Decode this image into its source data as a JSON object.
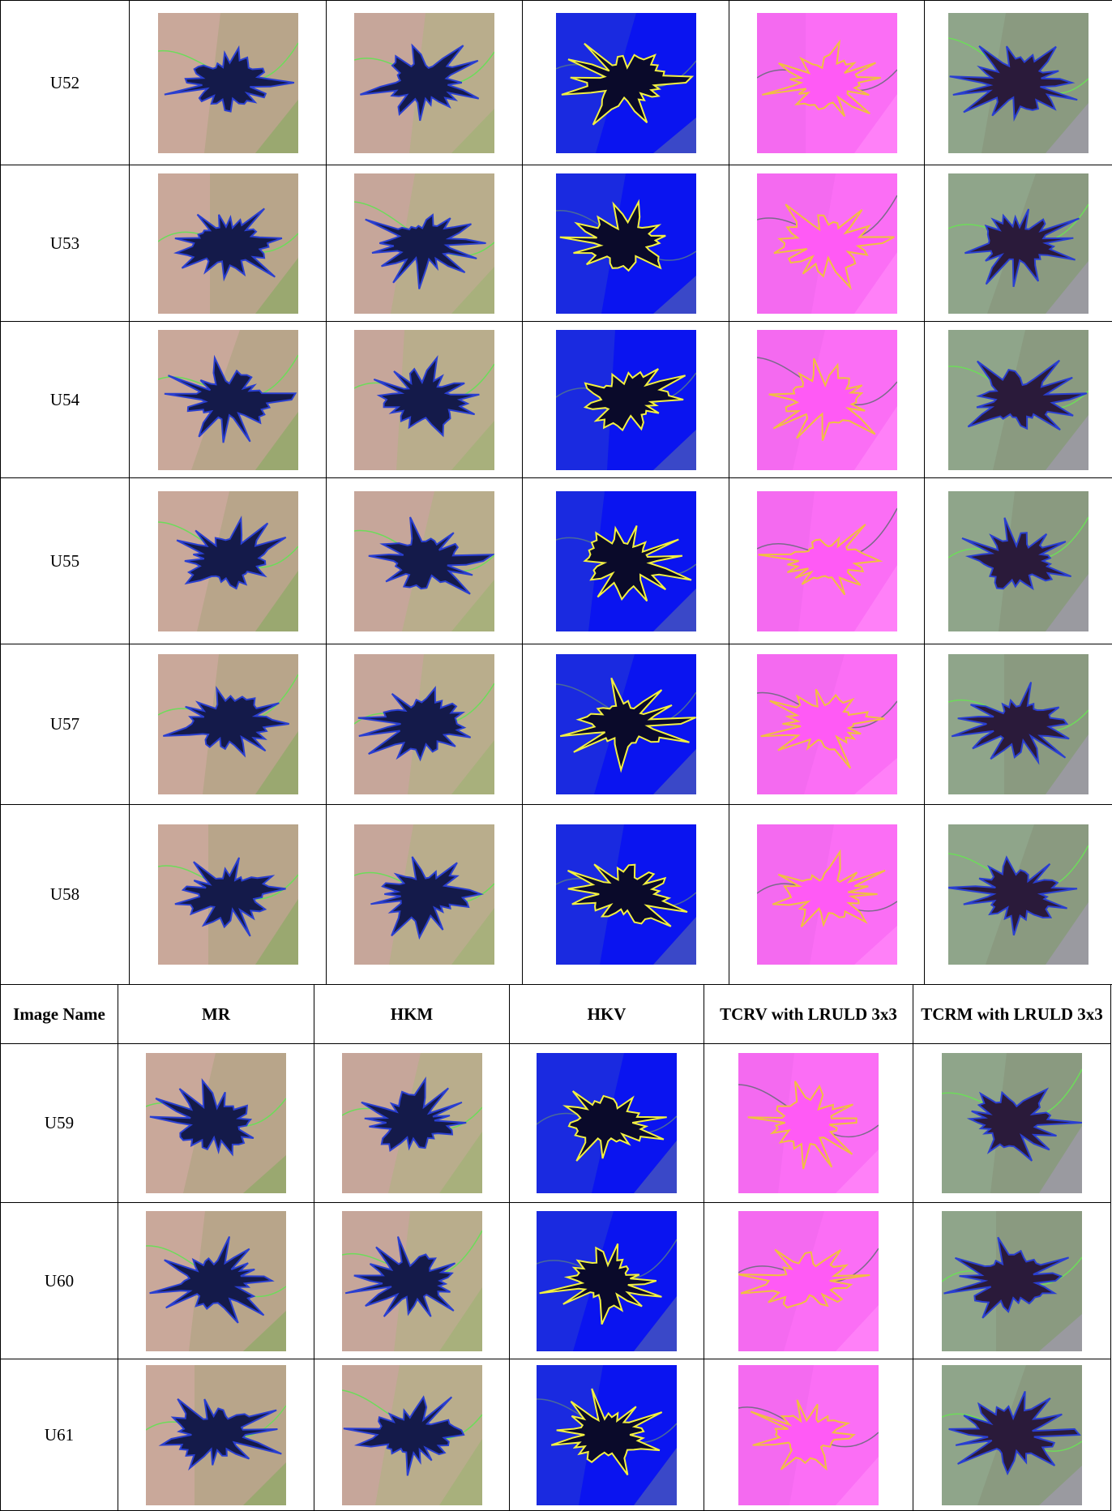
{
  "table_top": {
    "rows": [
      [
        "U52"
      ],
      [
        "U53"
      ],
      [
        "U54"
      ],
      [
        "U55"
      ],
      [
        "U57"
      ],
      [
        "U58"
      ]
    ]
  },
  "table_bottom": {
    "header": [
      "Image Name",
      "MR",
      "HKM",
      "HKV",
      "TCRV with LRULD 3x3",
      "TCRM with LRULD 3x3"
    ],
    "rows": [
      [
        "U59"
      ],
      [
        "U60"
      ],
      [
        "U61"
      ]
    ]
  }
}
